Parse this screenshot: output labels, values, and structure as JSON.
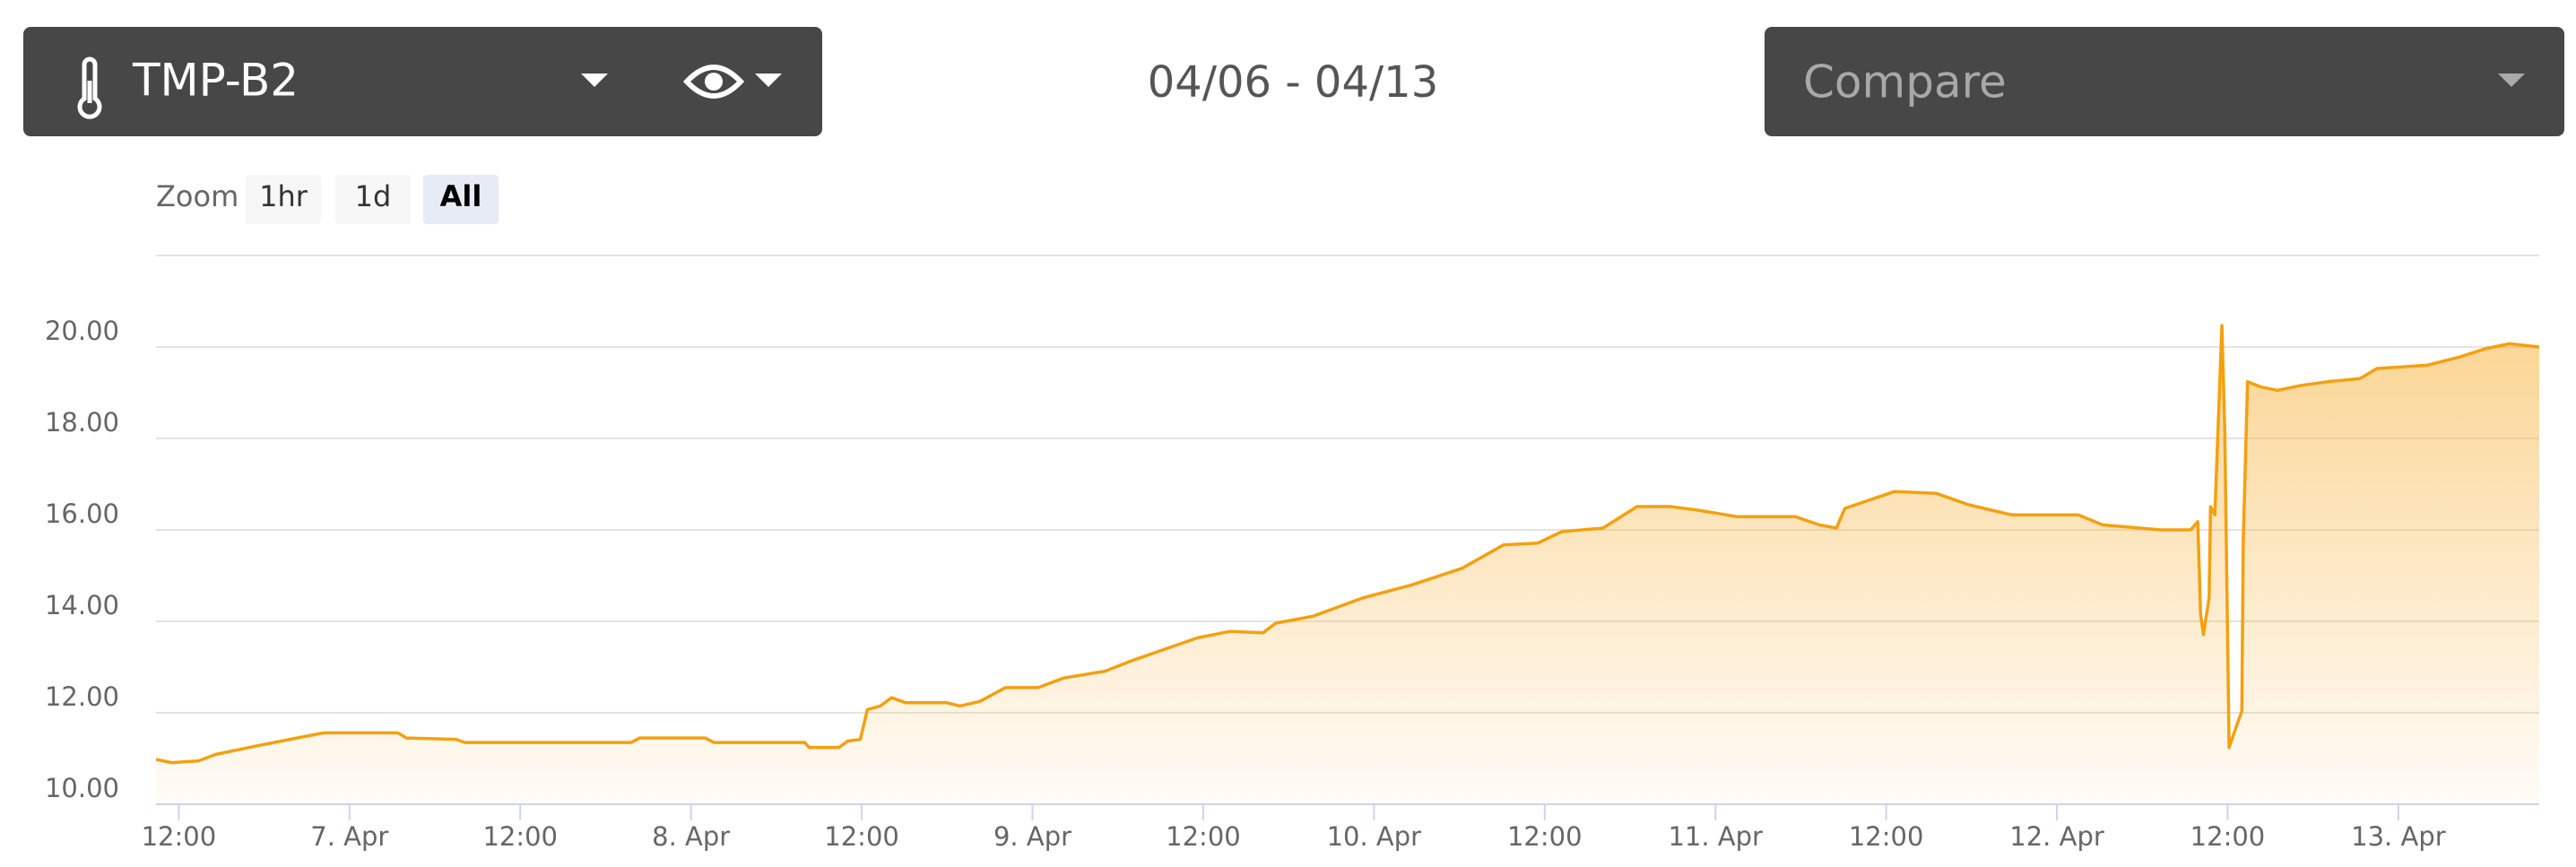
{
  "header": {
    "sensor": "TMP-B2",
    "date_range": "04/06 - 04/13",
    "compare": "Compare"
  },
  "zoom": {
    "label": "Zoom",
    "buttons": [
      {
        "label": "1hr",
        "active": false
      },
      {
        "label": "1d",
        "active": false
      },
      {
        "label": "All",
        "active": true
      }
    ]
  },
  "chart_data": {
    "type": "area",
    "color": "#f5a00f",
    "x": [
      10.4,
      11.5,
      13.4,
      14.6,
      16.9,
      18.7,
      21.0,
      22.2,
      27.4,
      28.0,
      31.5,
      32.1,
      43.8,
      44.4,
      49.0,
      49.6,
      56.0,
      56.3,
      58.4,
      59.0,
      59.9,
      60.4,
      61.3,
      62.1,
      63.1,
      66.0,
      66.9,
      68.3,
      70.1,
      72.4,
      74.2,
      77.1,
      78.9,
      81.2,
      83.6,
      85.9,
      88.2,
      89.1,
      91.7,
      95.2,
      98.7,
      102.2,
      105.1,
      107.5,
      109.2,
      112.1,
      114.5,
      116.8,
      118.6,
      121.5,
      125.6,
      127.3,
      128.5,
      129.1,
      132.6,
      135.5,
      137.8,
      140.8,
      145.5,
      147.2,
      151.3,
      153.4,
      153.9,
      154.1,
      154.3,
      154.7,
      154.8,
      155.1,
      155.6,
      155.8,
      156.1,
      156.7,
      157.0,
      157.1,
      157.4,
      158.3,
      159.5,
      161.2,
      163.0,
      165.3,
      166.5,
      170.0,
      172.3,
      174.1,
      175.8,
      177.9
    ],
    "values": [
      10.98,
      10.91,
      10.95,
      11.09,
      11.24,
      11.35,
      11.49,
      11.56,
      11.56,
      11.45,
      11.42,
      11.35,
      11.35,
      11.45,
      11.45,
      11.35,
      11.35,
      11.24,
      11.24,
      11.38,
      11.42,
      12.07,
      12.15,
      12.33,
      12.22,
      12.22,
      12.15,
      12.25,
      12.55,
      12.55,
      12.76,
      12.91,
      13.13,
      13.38,
      13.64,
      13.78,
      13.75,
      13.96,
      14.11,
      14.51,
      14.8,
      15.16,
      15.67,
      15.71,
      15.96,
      16.04,
      16.51,
      16.51,
      16.44,
      16.29,
      16.29,
      16.11,
      16.04,
      16.47,
      16.84,
      16.8,
      16.55,
      16.33,
      16.33,
      16.11,
      16.0,
      16.0,
      16.18,
      14.15,
      13.71,
      14.51,
      16.51,
      16.33,
      20.47,
      18.15,
      11.24,
      11.78,
      12.04,
      15.78,
      19.24,
      19.13,
      19.05,
      19.16,
      19.24,
      19.31,
      19.53,
      19.6,
      19.78,
      19.96,
      20.07,
      20.0
    ],
    "xlim": [
      10.4,
      177.9
    ],
    "xticks": [
      {
        "value": 12,
        "label": "12:00"
      },
      {
        "value": 24,
        "label": "7. Apr"
      },
      {
        "value": 36,
        "label": "12:00"
      },
      {
        "value": 48,
        "label": "8. Apr"
      },
      {
        "value": 60,
        "label": "12:00"
      },
      {
        "value": 72,
        "label": "9. Apr"
      },
      {
        "value": 84,
        "label": "12:00"
      },
      {
        "value": 96,
        "label": "10. Apr"
      },
      {
        "value": 108,
        "label": "12:00"
      },
      {
        "value": 120,
        "label": "11. Apr"
      },
      {
        "value": 132,
        "label": "12:00"
      },
      {
        "value": 144,
        "label": "12. Apr"
      },
      {
        "value": 156,
        "label": "12:00"
      },
      {
        "value": 168,
        "label": "13. Apr"
      }
    ],
    "ylim": [
      10,
      22
    ],
    "yticks": [
      {
        "value": 10,
        "label": "10.00"
      },
      {
        "value": 12,
        "label": "12.00"
      },
      {
        "value": 14,
        "label": "14.00"
      },
      {
        "value": 16,
        "label": "16.00"
      },
      {
        "value": 18,
        "label": "18.00"
      },
      {
        "value": 20,
        "label": "20.00"
      }
    ],
    "grid": true
  }
}
